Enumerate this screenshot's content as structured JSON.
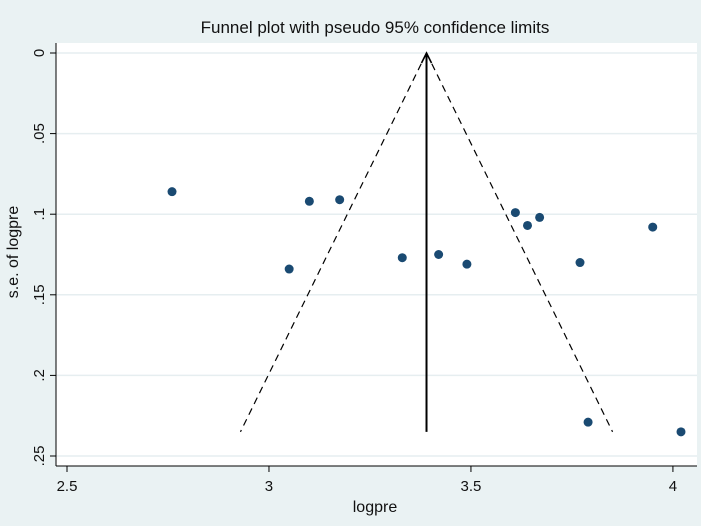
{
  "chart_data": {
    "type": "scatter",
    "title": "Funnel plot with pseudo 95% confidence limits",
    "xlabel": "logpre",
    "ylabel": "s.e. of logpre",
    "xlim": [
      2.5,
      4.02
    ],
    "ylim": [
      0,
      0.25
    ],
    "y_reversed": true,
    "grid": true,
    "legend": "none",
    "x_ticks": [
      2.5,
      3,
      3.5,
      4
    ],
    "x_tick_labels": [
      "2.5",
      "3",
      "3.5",
      "4"
    ],
    "y_ticks": [
      0,
      0.05,
      0.1,
      0.15,
      0.2,
      0.25
    ],
    "y_tick_labels": [
      "0",
      ".05",
      ".1",
      ".15",
      ".2",
      ".25"
    ],
    "pooled_estimate": 3.39,
    "funnel_se_max": 0.235,
    "points": [
      {
        "x": 2.76,
        "y": 0.086
      },
      {
        "x": 3.05,
        "y": 0.134
      },
      {
        "x": 3.1,
        "y": 0.092
      },
      {
        "x": 3.175,
        "y": 0.091
      },
      {
        "x": 3.33,
        "y": 0.127
      },
      {
        "x": 3.42,
        "y": 0.125
      },
      {
        "x": 3.49,
        "y": 0.131
      },
      {
        "x": 3.61,
        "y": 0.099
      },
      {
        "x": 3.64,
        "y": 0.107
      },
      {
        "x": 3.67,
        "y": 0.102
      },
      {
        "x": 3.77,
        "y": 0.13
      },
      {
        "x": 3.79,
        "y": 0.229
      },
      {
        "x": 3.95,
        "y": 0.108
      },
      {
        "x": 4.02,
        "y": 0.235
      }
    ],
    "colors": {
      "background": "#eaf2f3",
      "plot_area": "#ffffff",
      "grid": "#e6eef0",
      "point": "#1a4a72",
      "line": "#000000"
    }
  }
}
